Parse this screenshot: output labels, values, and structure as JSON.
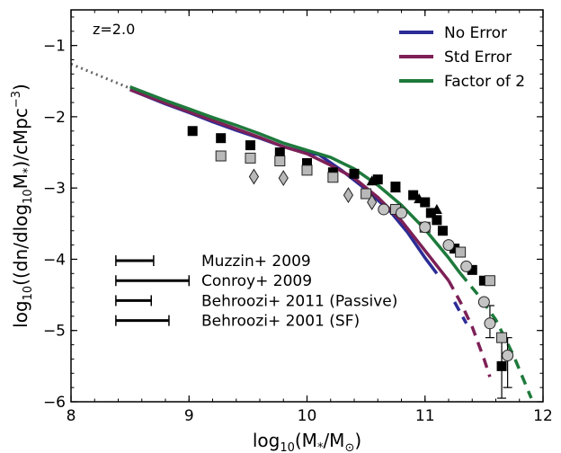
{
  "chart_data": {
    "type": "line",
    "annotation": "z=2.0",
    "xlabel_parts": [
      "log",
      "10",
      "(M",
      "*",
      "/M",
      "⊙",
      ")"
    ],
    "ylabel_parts": [
      "log",
      "10",
      "((dn/dlog",
      "10",
      "M",
      "*",
      ")/cMpc",
      "−3",
      ")"
    ],
    "xlim": [
      8,
      12
    ],
    "ylim": [
      -6,
      -0.5
    ],
    "x_ticks": [
      {
        "v": 8,
        "label": "8"
      },
      {
        "v": 9,
        "label": "9"
      },
      {
        "v": 10,
        "label": "10"
      },
      {
        "v": 11,
        "label": "11"
      },
      {
        "v": 12,
        "label": "12"
      }
    ],
    "y_ticks": [
      {
        "v": -1,
        "label": "−1"
      },
      {
        "v": -2,
        "label": "−2"
      },
      {
        "v": -3,
        "label": "−3"
      },
      {
        "v": -4,
        "label": "−4"
      },
      {
        "v": -5,
        "label": "−5"
      },
      {
        "v": -6,
        "label": "−6"
      }
    ],
    "legend": {
      "position": "top-right"
    },
    "series": [
      {
        "name": "No Error",
        "color": "#2c2c96",
        "x": [
          8.5,
          8.8,
          9.0,
          9.2,
          9.4,
          9.6,
          9.8,
          10.0,
          10.1,
          10.3,
          10.5,
          10.7,
          10.85,
          11.0,
          11.1
        ],
        "y": [
          -1.62,
          -1.82,
          -1.94,
          -2.07,
          -2.19,
          -2.3,
          -2.42,
          -2.51,
          -2.53,
          -2.76,
          -3.02,
          -3.32,
          -3.62,
          -3.98,
          -4.2
        ],
        "dashed_x": [
          11.25,
          11.3,
          11.35
        ],
        "dashed_y": [
          -4.6,
          -4.75,
          -4.9
        ]
      },
      {
        "name": "Std Error",
        "color": "#7d2057",
        "x": [
          8.5,
          8.8,
          9.0,
          9.2,
          9.4,
          9.6,
          9.8,
          10.0,
          10.2,
          10.4,
          10.6,
          10.8,
          11.0,
          11.2
        ],
        "y": [
          -1.62,
          -1.81,
          -1.93,
          -2.05,
          -2.17,
          -2.29,
          -2.42,
          -2.52,
          -2.68,
          -2.86,
          -3.13,
          -3.46,
          -3.88,
          -4.3
        ],
        "dashed_x": [
          11.2,
          11.3,
          11.4,
          11.5,
          11.55
        ],
        "dashed_y": [
          -4.3,
          -4.6,
          -4.95,
          -5.4,
          -5.65
        ]
      },
      {
        "name": "Factor of 2",
        "color": "#1e7a3c",
        "x": [
          8.5,
          8.8,
          9.0,
          9.2,
          9.4,
          9.6,
          9.8,
          10.0,
          10.2,
          10.4,
          10.6,
          10.8,
          11.0,
          11.2,
          11.3
        ],
        "y": [
          -1.58,
          -1.77,
          -1.89,
          -2.01,
          -2.12,
          -2.24,
          -2.37,
          -2.47,
          -2.57,
          -2.73,
          -2.96,
          -3.24,
          -3.58,
          -3.98,
          -4.2
        ],
        "dashed_x": [
          11.3,
          11.45,
          11.6,
          11.75,
          11.9
        ],
        "dashed_y": [
          -4.2,
          -4.5,
          -4.85,
          -5.35,
          -5.95
        ]
      }
    ],
    "extrapolation": {
      "color": "#666666",
      "x": [
        8.0,
        8.5
      ],
      "y": [
        -1.26,
        -1.6
      ]
    },
    "scatter": [
      {
        "marker": "square_black",
        "x": [
          9.03,
          9.27,
          9.52,
          9.77,
          10.0,
          10.22,
          10.4,
          10.6,
          10.75,
          10.9,
          11.0,
          11.05,
          11.1,
          11.15,
          11.25,
          11.4,
          11.5,
          11.65
        ],
        "y": [
          -2.2,
          -2.3,
          -2.4,
          -2.5,
          -2.65,
          -2.78,
          -2.8,
          -2.88,
          -2.98,
          -3.1,
          -3.2,
          -3.35,
          -3.45,
          -3.6,
          -3.85,
          -4.15,
          -4.3,
          -5.5
        ]
      },
      {
        "marker": "square_gray",
        "x": [
          9.27,
          9.52,
          9.77,
          10.0,
          10.22,
          10.5,
          10.75,
          11.0,
          11.3,
          11.55,
          11.65
        ],
        "y": [
          -2.55,
          -2.58,
          -2.62,
          -2.75,
          -2.85,
          -3.08,
          -3.3,
          -3.55,
          -3.9,
          -4.3,
          -5.1
        ]
      },
      {
        "marker": "diamond_gray",
        "x": [
          9.55,
          9.8,
          10.35,
          10.55
        ],
        "y": [
          -2.84,
          -2.86,
          -3.1,
          -3.2
        ]
      },
      {
        "marker": "circle_gray",
        "x": [
          10.65,
          10.8,
          11.0,
          11.2,
          11.35,
          11.5,
          11.55,
          11.7
        ],
        "y": [
          -3.3,
          -3.35,
          -3.55,
          -3.8,
          -4.1,
          -4.6,
          -4.9,
          -5.35
        ]
      },
      {
        "marker": "triangle_black",
        "x": [
          10.55,
          10.75,
          10.95,
          11.1
        ],
        "y": [
          -2.9,
          -3.0,
          -3.15,
          -3.3
        ]
      }
    ],
    "error_bars": [
      {
        "x": 11.65,
        "y": -5.5,
        "ylow": -5.95,
        "yhigh": -5.05
      },
      {
        "x": 11.7,
        "y": -5.35,
        "ylow": -5.8,
        "yhigh": -5.1
      },
      {
        "x": 11.55,
        "y": -4.9,
        "ylow": -5.1,
        "yhigh": -4.65
      }
    ],
    "systematics": [
      {
        "label": "Muzzin+ 2009",
        "left": 8.38,
        "right": 8.7,
        "y": -4.02
      },
      {
        "label": "Conroy+ 2009",
        "left": 8.38,
        "right": 9.0,
        "y": -4.3
      },
      {
        "label": "Behroozi+ 2011 (Passive)",
        "left": 8.38,
        "right": 8.68,
        "y": -4.58
      },
      {
        "label": "Behroozi+ 2001 (SF)",
        "left": 8.38,
        "right": 8.83,
        "y": -4.86
      }
    ]
  }
}
